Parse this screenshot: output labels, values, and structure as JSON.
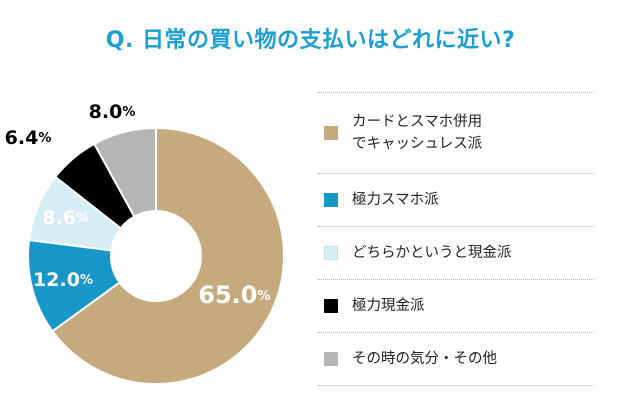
{
  "title": "Q. 日常の買い物の支払いはどれに近い?",
  "chart_data": {
    "type": "pie",
    "donut": true,
    "categories": [
      "カードとスマホ併用\nでキャッシュレス派",
      "極力スマホ派",
      "どちらかというと現金派",
      "極力現金派",
      "その時の気分・その他"
    ],
    "values": [
      65.0,
      12.0,
      8.6,
      6.4,
      8.0
    ],
    "value_labels": [
      "65.0",
      "12.0",
      "8.6",
      "6.4",
      "8.0"
    ],
    "unit": "%",
    "colors": [
      "#c4aa7d",
      "#1796c8",
      "#d6edf3",
      "#000000",
      "#b5b5b5"
    ],
    "label_colors": [
      "#ffffff",
      "#ffffff",
      "#ffffff",
      "#000000",
      "#000000"
    ],
    "start": "12 o'clock, clockwise",
    "legend_position": "right"
  }
}
